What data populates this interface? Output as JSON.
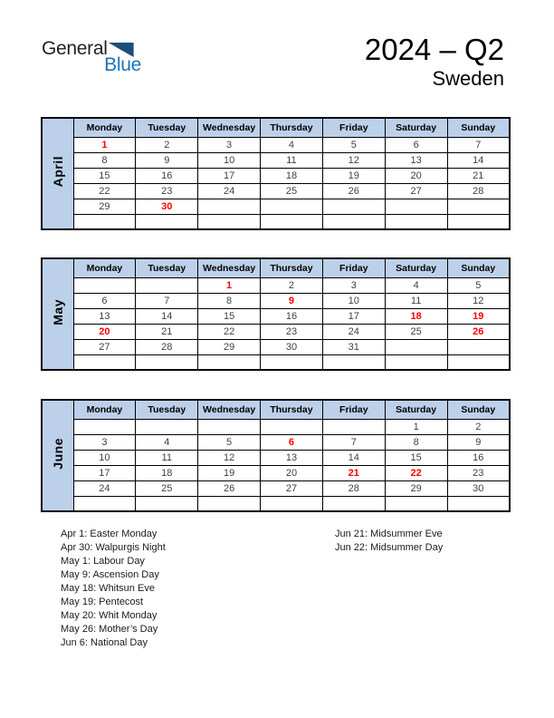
{
  "logo": {
    "general": "General",
    "blue": "Blue"
  },
  "header": {
    "title": "2024 – Q2",
    "subtitle": "Sweden"
  },
  "weekdays": [
    "Monday",
    "Tuesday",
    "Wednesday",
    "Thursday",
    "Friday",
    "Saturday",
    "Sunday"
  ],
  "months": [
    {
      "name": "April",
      "red_days": [
        1,
        30
      ],
      "rows": [
        [
          "1",
          "2",
          "3",
          "4",
          "5",
          "6",
          "7"
        ],
        [
          "8",
          "9",
          "10",
          "11",
          "12",
          "13",
          "14"
        ],
        [
          "15",
          "16",
          "17",
          "18",
          "19",
          "20",
          "21"
        ],
        [
          "22",
          "23",
          "24",
          "25",
          "26",
          "27",
          "28"
        ],
        [
          "29",
          "30",
          "",
          "",
          "",
          "",
          ""
        ],
        [
          "",
          "",
          "",
          "",
          "",
          "",
          ""
        ]
      ]
    },
    {
      "name": "May",
      "red_days": [
        1,
        9,
        18,
        19,
        20,
        26
      ],
      "rows": [
        [
          "",
          "",
          "1",
          "2",
          "3",
          "4",
          "5"
        ],
        [
          "6",
          "7",
          "8",
          "9",
          "10",
          "11",
          "12"
        ],
        [
          "13",
          "14",
          "15",
          "16",
          "17",
          "18",
          "19"
        ],
        [
          "20",
          "21",
          "22",
          "23",
          "24",
          "25",
          "26"
        ],
        [
          "27",
          "28",
          "29",
          "30",
          "31",
          "",
          ""
        ],
        [
          "",
          "",
          "",
          "",
          "",
          "",
          ""
        ]
      ]
    },
    {
      "name": "June",
      "red_days": [
        6,
        21,
        22
      ],
      "rows": [
        [
          "",
          "",
          "",
          "",
          "",
          "1",
          "2"
        ],
        [
          "3",
          "4",
          "5",
          "6",
          "7",
          "8",
          "9"
        ],
        [
          "10",
          "11",
          "12",
          "13",
          "14",
          "15",
          "16"
        ],
        [
          "17",
          "18",
          "19",
          "20",
          "21",
          "22",
          "23"
        ],
        [
          "24",
          "25",
          "26",
          "27",
          "28",
          "29",
          "30"
        ],
        [
          "",
          "",
          "",
          "",
          "",
          "",
          ""
        ]
      ]
    }
  ],
  "holidays": {
    "left": [
      "Apr 1: Easter Monday",
      "Apr 30: Walpurgis Night",
      "May 1: Labour Day",
      "May 9: Ascension Day",
      "May 18: Whitsun Eve",
      "May 19: Pentecost",
      "May 20: Whit Monday",
      "May 26: Mother’s Day",
      "Jun 6: National Day"
    ],
    "right": [
      "Jun 21: Midsummer Eve",
      "Jun 22: Midsummer Day"
    ]
  },
  "colors": {
    "header-bg": "#bdd0ea",
    "holiday-red": "#ff0000",
    "logo-triangle-blue": "#1e4e79",
    "logo-blue": "#1b75bc",
    "day-text": "#3f3f3f",
    "text-black": "#1a1a1a"
  }
}
